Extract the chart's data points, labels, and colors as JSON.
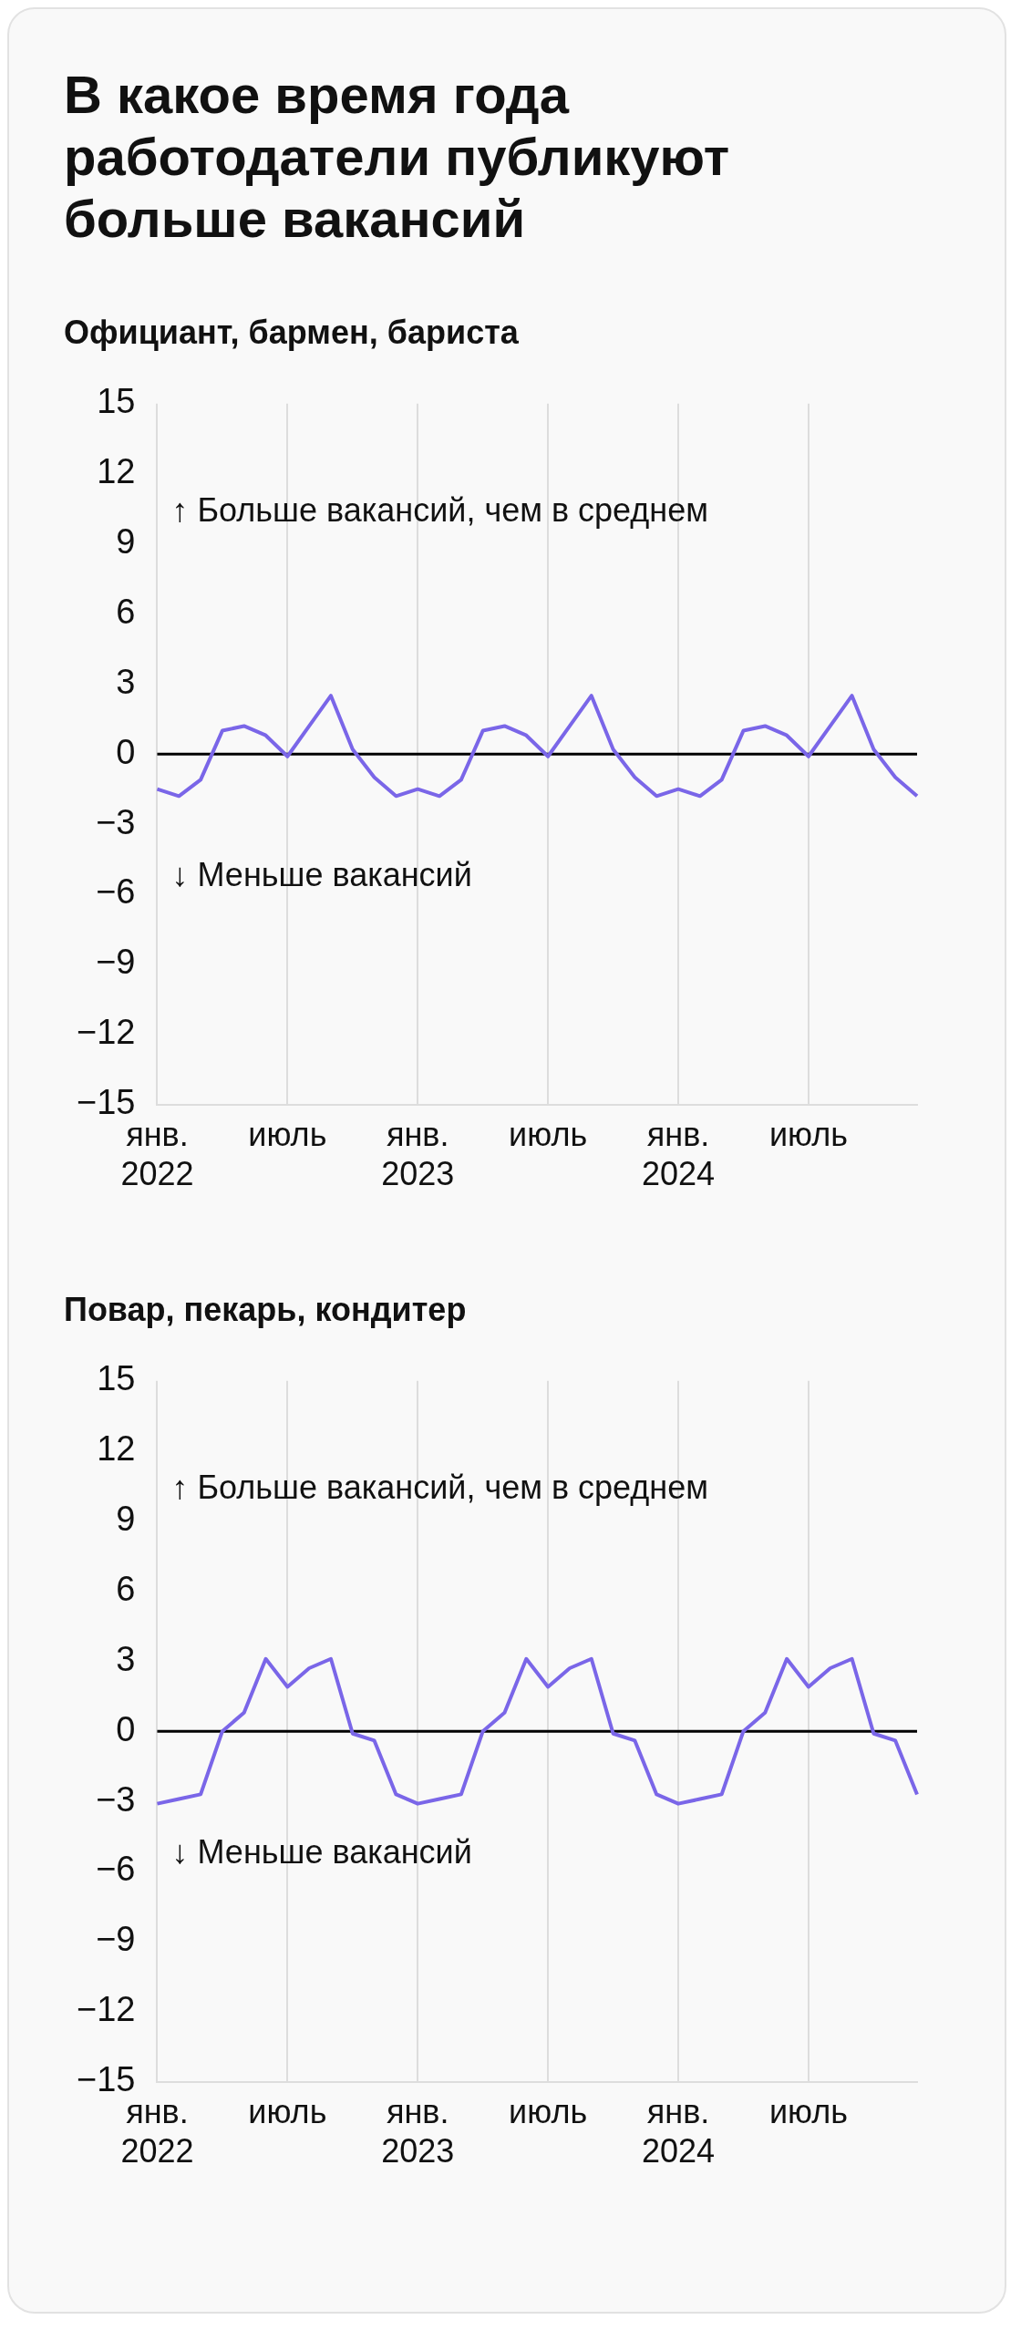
{
  "chart_data": [
    {
      "type": "line",
      "title": "В какое время года работодатели публикуют больше вакансий",
      "subtitle": "Официант, бармен, бариста",
      "categories": [
        "янв. 2022",
        null,
        null,
        null,
        null,
        null,
        "июль",
        null,
        null,
        null,
        null,
        null,
        "янв. 2023",
        null,
        null,
        null,
        null,
        null,
        "июль",
        null,
        null,
        null,
        null,
        null,
        "янв. 2024",
        null,
        null,
        null,
        null,
        null,
        "июль",
        null,
        null,
        null,
        null,
        null
      ],
      "series": [
        {
          "color": "#7a66e8",
          "values": [
            -1.5,
            -1.8,
            -1.1,
            1.0,
            1.2,
            0.8,
            -0.1,
            1.2,
            2.5,
            0.2,
            -1.0,
            -1.8,
            -1.5,
            -1.8,
            -1.1,
            1.0,
            1.2,
            0.8,
            -0.1,
            1.2,
            2.5,
            0.2,
            -1.0,
            -1.8,
            -1.5,
            -1.8,
            -1.1,
            1.0,
            1.2,
            0.8,
            -0.1,
            1.2,
            2.5,
            0.2,
            -1.0,
            -1.8
          ]
        }
      ],
      "ylim": [
        -15,
        15
      ],
      "yticks": [
        {
          "value": -15,
          "label": "−15"
        },
        {
          "value": -12,
          "label": "−12"
        },
        {
          "value": -9,
          "label": "−9"
        },
        {
          "value": -6,
          "label": "−6"
        },
        {
          "value": -3,
          "label": "−3"
        },
        0,
        3,
        6,
        9,
        12,
        15
      ],
      "grid": "x",
      "legend": false,
      "marker": "none",
      "ref_lines": [
        {
          "axis": "y",
          "value": 0,
          "color": "#000000"
        }
      ],
      "annotations": [
        "↑ Больше вакансий, чем в среднем",
        "↓ Меньше вакансий"
      ]
    },
    {
      "type": "line",
      "subtitle": "Повар, пекарь, кондитер",
      "categories": [
        "янв. 2022",
        null,
        null,
        null,
        null,
        null,
        "июль",
        null,
        null,
        null,
        null,
        null,
        "янв. 2023",
        null,
        null,
        null,
        null,
        null,
        "июль",
        null,
        null,
        null,
        null,
        null,
        "янв. 2024",
        null,
        null,
        null,
        null,
        null,
        "июль",
        null,
        null,
        null,
        null,
        null
      ],
      "series": [
        {
          "color": "#7a66e8",
          "values": [
            -3.1,
            -2.9,
            -2.7,
            0,
            0.8,
            3.1,
            1.9,
            2.7,
            3.1,
            -0.1,
            -0.4,
            -2.7,
            -3.1,
            -2.9,
            -2.7,
            0,
            0.8,
            3.1,
            1.9,
            2.7,
            3.1,
            -0.1,
            -0.4,
            -2.7,
            -3.1,
            -2.9,
            -2.7,
            0,
            0.8,
            3.1,
            1.9,
            2.7,
            3.1,
            -0.1,
            -0.4,
            -2.7
          ]
        }
      ],
      "ylim": [
        -15,
        15
      ],
      "yticks": [
        {
          "value": -15,
          "label": "−15"
        },
        {
          "value": -12,
          "label": "−12"
        },
        {
          "value": -9,
          "label": "−9"
        },
        {
          "value": -6,
          "label": "−6"
        },
        {
          "value": -3,
          "label": "−3"
        },
        0,
        3,
        6,
        9,
        12,
        15
      ],
      "grid": "x",
      "legend": false,
      "marker": "none",
      "ref_lines": [
        {
          "axis": "y",
          "value": 0,
          "color": "#000000"
        }
      ],
      "annotations": [
        "↑ Больше вакансий, чем в среднем",
        "↓ Меньше вакансий"
      ]
    }
  ]
}
